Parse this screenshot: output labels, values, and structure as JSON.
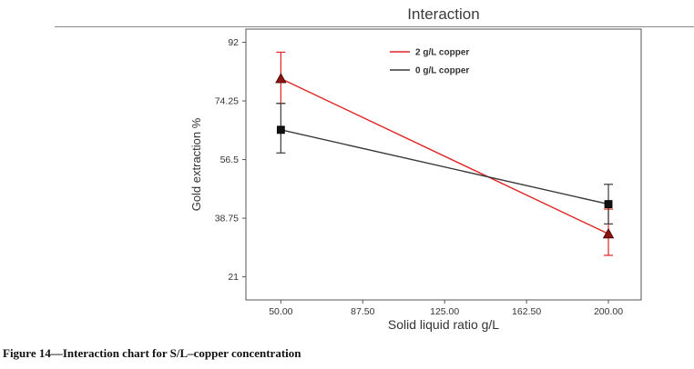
{
  "page": {
    "caption": "Figure 14—Interaction chart for S/L–copper concentration"
  },
  "chart_data": {
    "type": "line",
    "title": "Interaction",
    "xlabel": "Solid liquid ratio g/L",
    "ylabel": "Gold extraction %",
    "x_tick_values": [
      50,
      87.5,
      125,
      162.5,
      200
    ],
    "x_tick_labels": [
      "50.00",
      "87.50",
      "125.00",
      "162.50",
      "200.00"
    ],
    "y_tick_values": [
      21,
      38.75,
      56.5,
      74.25,
      92
    ],
    "y_tick_labels": [
      "21",
      "38.75",
      "56.5",
      "74.25",
      "92"
    ],
    "xlim": [
      34,
      215
    ],
    "ylim": [
      14,
      96
    ],
    "grid": false,
    "legend_position": "inside-top-center",
    "series": [
      {
        "name": "2 g/L copper",
        "color": "#e02424",
        "marker": "triangle",
        "marker_color": "#8f1212",
        "x": [
          50,
          200
        ],
        "y": [
          81,
          34
        ],
        "error_low": [
          73.5,
          27.5
        ],
        "error_high": [
          89,
          41.5
        ]
      },
      {
        "name": "0 g/L copper",
        "color": "#3a3a3a",
        "marker": "square",
        "marker_color": "#111111",
        "x": [
          50,
          200
        ],
        "y": [
          65.5,
          43
        ],
        "error_low": [
          58.5,
          37
        ],
        "error_high": [
          73.5,
          49
        ]
      }
    ]
  }
}
